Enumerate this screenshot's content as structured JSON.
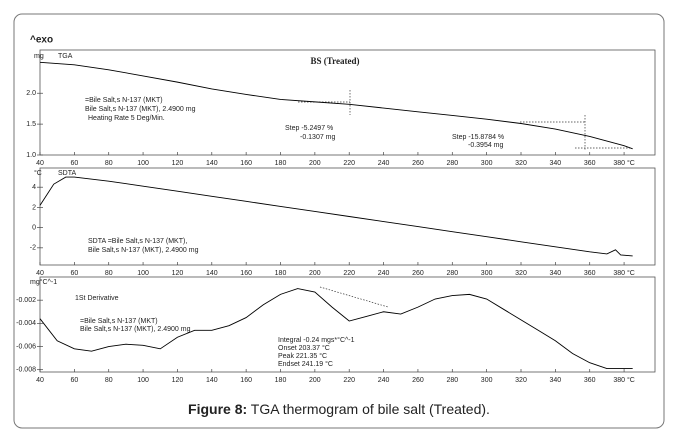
{
  "header": "^exo",
  "caption": {
    "label": "Figure 8:",
    "text": " TGA thermogram of bile salt (Treated)."
  },
  "chart_data": [
    {
      "type": "line",
      "title": "BS (Treated)",
      "label": "TGA",
      "y_unit": "mg",
      "color": "#000000",
      "x": [
        40,
        60,
        80,
        100,
        120,
        140,
        160,
        180,
        200,
        220,
        240,
        260,
        280,
        300,
        320,
        340,
        360,
        380,
        385
      ],
      "values": [
        2.5,
        2.46,
        2.38,
        2.28,
        2.18,
        2.07,
        1.98,
        1.9,
        1.86,
        1.82,
        1.76,
        1.7,
        1.64,
        1.58,
        1.51,
        1.42,
        1.3,
        1.15,
        1.1
      ],
      "xlim": [
        40,
        398
      ],
      "xticks": [
        40,
        60,
        80,
        100,
        120,
        140,
        160,
        180,
        200,
        220,
        240,
        260,
        280,
        300,
        320,
        340,
        360,
        {
          "value": 380,
          "label": "380 °C"
        }
      ],
      "ylim": [
        1.0,
        2.7
      ],
      "yticks": [
        {
          "value": 2,
          "label": "2.0"
        },
        {
          "value": 1.5,
          "label": "1.5"
        },
        {
          "value": 1,
          "label": "1.0"
        }
      ],
      "annotations": [
        "=Bile Salt,s N-137 (MKT)",
        "Bile Salt,s N-137 (MKT), 2.4900 mg",
        "Heating Rate 5 Deg/Min.",
        "Step  -5.2497 %",
        "-0.1307 mg",
        "Step  -15.8784 %",
        "-0.3954 mg"
      ]
    },
    {
      "type": "line",
      "label": "SDTA",
      "y_unit": "°C",
      "color": "#000000",
      "x": [
        40,
        48,
        55,
        60,
        80,
        100,
        120,
        140,
        160,
        180,
        200,
        220,
        240,
        260,
        280,
        300,
        320,
        340,
        360,
        370,
        375,
        378,
        385
      ],
      "values": [
        2.2,
        4.3,
        5.0,
        5.0,
        4.6,
        4.1,
        3.6,
        3.1,
        2.6,
        2.1,
        1.6,
        1.1,
        0.6,
        0.1,
        -0.4,
        -0.9,
        -1.4,
        -1.9,
        -2.4,
        -2.6,
        -2.2,
        -2.7,
        -2.8
      ],
      "xlim": [
        40,
        398
      ],
      "xticks": [
        40,
        60,
        80,
        100,
        120,
        140,
        160,
        180,
        200,
        220,
        240,
        260,
        280,
        300,
        320,
        340,
        360,
        {
          "value": 380,
          "label": "380 °C"
        }
      ],
      "ylim": [
        -3.7,
        5.9
      ],
      "yticks": [
        4,
        2,
        0,
        -2
      ],
      "annotations": [
        "SDTA =Bile Salt,s N-137 (MKT),",
        "Bile Salt,s N-137 (MKT), 2.4900 mg"
      ]
    },
    {
      "type": "line",
      "label": "1St Derivative",
      "y_unit": "mg°C^-1",
      "color": "#000000",
      "x": [
        40,
        50,
        60,
        70,
        80,
        90,
        100,
        110,
        120,
        130,
        140,
        150,
        160,
        170,
        180,
        190,
        200,
        210,
        220,
        230,
        240,
        250,
        260,
        270,
        280,
        290,
        300,
        310,
        320,
        330,
        340,
        350,
        360,
        370,
        385
      ],
      "values": [
        -0.0036,
        -0.0055,
        -0.0062,
        -0.0064,
        -0.006,
        -0.0058,
        -0.0059,
        -0.0062,
        -0.0052,
        -0.0046,
        -0.0046,
        -0.0042,
        -0.0035,
        -0.0024,
        -0.0015,
        -0.001,
        -0.0013,
        -0.0026,
        -0.0038,
        -0.0034,
        -0.003,
        -0.0032,
        -0.0026,
        -0.0019,
        -0.0016,
        -0.0015,
        -0.0019,
        -0.0028,
        -0.0037,
        -0.0046,
        -0.0055,
        -0.0066,
        -0.0074,
        -0.0079,
        -0.0079
      ],
      "xlim": [
        40,
        398
      ],
      "xticks": [
        40,
        60,
        80,
        100,
        120,
        140,
        160,
        180,
        200,
        220,
        240,
        260,
        280,
        300,
        320,
        340,
        360,
        {
          "value": 380,
          "label": "380 °C"
        }
      ],
      "ylim": [
        -0.0082,
        0.0
      ],
      "yticks": [
        -0.002,
        -0.004,
        -0.006,
        -0.008
      ],
      "annotations": [
        "=Bile Salt,s N-137 (MKT)",
        "Bile Salt,s N-137 (MKT), 2.4900 mg",
        "Integral  -0.24 mgs*°C^-1",
        "Onset  203.37 °C",
        "Peak  221.35 °C",
        "Endset  241.19 °C"
      ]
    }
  ]
}
